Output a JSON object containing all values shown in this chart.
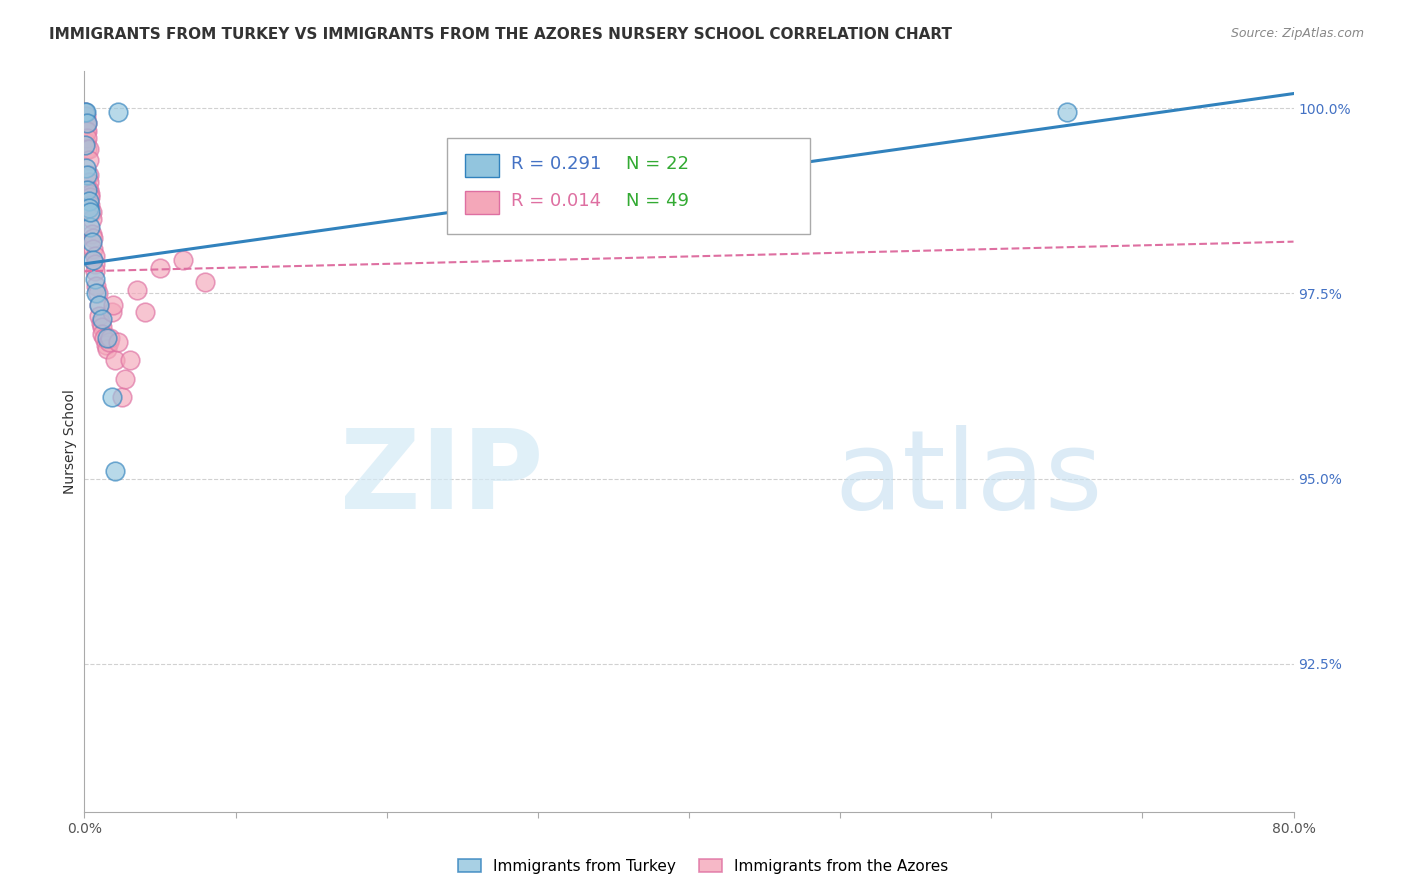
{
  "title": "IMMIGRANTS FROM TURKEY VS IMMIGRANTS FROM THE AZORES NURSERY SCHOOL CORRELATION CHART",
  "source": "Source: ZipAtlas.com",
  "ylabel": "Nursery School",
  "r_turkey": 0.291,
  "n_turkey": 22,
  "r_azores": 0.014,
  "n_azores": 49,
  "color_turkey": "#92c5de",
  "color_azores": "#f4a7b9",
  "line_color_turkey": "#3182bd",
  "line_color_azores": "#de6fa1",
  "xmin": 0.0,
  "xmax": 0.8,
  "ymin": 0.905,
  "ymax": 1.005,
  "yticks": [
    0.925,
    0.95,
    0.975,
    1.0
  ],
  "ytick_labels": [
    "92.5%",
    "95.0%",
    "97.5%",
    "100.0%"
  ],
  "xtick_positions": [
    0.0,
    0.1,
    0.2,
    0.3,
    0.4,
    0.5,
    0.6,
    0.7,
    0.8
  ],
  "xtick_labels": [
    "0.0%",
    "",
    "",
    "",
    "",
    "",
    "",
    "",
    "80.0%"
  ],
  "turkey_x": [
    0.0005,
    0.001,
    0.001,
    0.002,
    0.002,
    0.002,
    0.003,
    0.003,
    0.004,
    0.004,
    0.005,
    0.006,
    0.007,
    0.008,
    0.01,
    0.012,
    0.015,
    0.018,
    0.02,
    0.022,
    0.65,
    0.0003
  ],
  "turkey_y": [
    0.9995,
    0.9995,
    0.992,
    0.991,
    0.989,
    0.998,
    0.9875,
    0.9865,
    0.984,
    0.986,
    0.982,
    0.9795,
    0.977,
    0.975,
    0.9735,
    0.9715,
    0.969,
    0.961,
    0.951,
    0.9995,
    0.9995,
    0.995
  ],
  "azores_x": [
    0.0005,
    0.001,
    0.001,
    0.001,
    0.001,
    0.002,
    0.002,
    0.002,
    0.002,
    0.003,
    0.003,
    0.003,
    0.003,
    0.003,
    0.004,
    0.004,
    0.004,
    0.005,
    0.005,
    0.005,
    0.006,
    0.006,
    0.007,
    0.007,
    0.007,
    0.008,
    0.009,
    0.01,
    0.01,
    0.011,
    0.012,
    0.012,
    0.013,
    0.014,
    0.015,
    0.016,
    0.017,
    0.018,
    0.019,
    0.02,
    0.022,
    0.025,
    0.027,
    0.03,
    0.035,
    0.04,
    0.05,
    0.065,
    0.08
  ],
  "azores_y": [
    0.9995,
    0.999,
    0.998,
    0.997,
    0.9955,
    0.998,
    0.997,
    0.996,
    0.9945,
    0.9945,
    0.993,
    0.991,
    0.99,
    0.989,
    0.9885,
    0.988,
    0.987,
    0.986,
    0.985,
    0.983,
    0.9825,
    0.981,
    0.98,
    0.979,
    0.978,
    0.976,
    0.975,
    0.9735,
    0.972,
    0.971,
    0.9705,
    0.9695,
    0.969,
    0.968,
    0.9675,
    0.9685,
    0.969,
    0.9725,
    0.9735,
    0.966,
    0.9685,
    0.961,
    0.9635,
    0.966,
    0.9755,
    0.9725,
    0.9785,
    0.9795,
    0.9765
  ],
  "background_color": "#ffffff",
  "grid_color": "#cccccc",
  "title_fontsize": 11,
  "tick_color_y": "#4472c4",
  "tick_color_x": "#555555",
  "tick_fontsize": 10,
  "ylabel_fontsize": 10,
  "legend_fontsize": 13,
  "watermark_zip_color": "#dceef8",
  "watermark_atlas_color": "#c8e0f0"
}
